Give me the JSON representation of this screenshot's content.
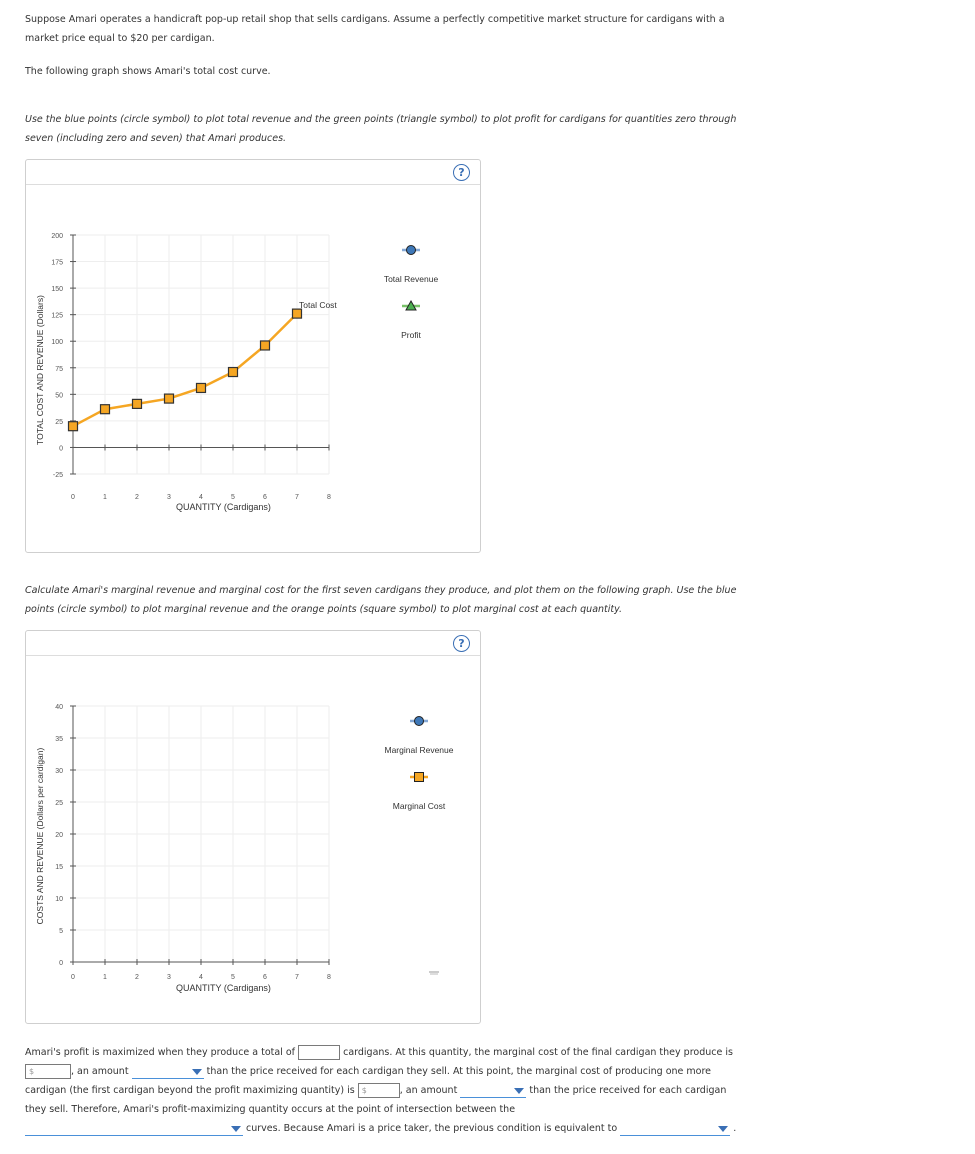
{
  "intro": {
    "line1": "Suppose Amari operates a handicraft pop-up retail shop that sells cardigans. Assume a perfectly competitive market structure for cardigans with a",
    "line2": "market price equal to $20 per cardigan.",
    "line3": "The following graph shows Amari's total cost curve."
  },
  "instruction1": {
    "line1": "Use the blue points (circle symbol) to plot total revenue and the green points (triangle symbol) to plot profit for cardigans for quantities zero through",
    "line2": "seven (including zero and seven) that Amari produces."
  },
  "instruction2": {
    "line1": "Calculate Amari's marginal revenue and marginal cost for the first seven cardigans they produce, and plot them on the following graph. Use the blue",
    "line2": "points (circle symbol) to plot marginal revenue and the orange points (square symbol) to plot marginal cost at each quantity."
  },
  "help_symbol": "?",
  "graph1": {
    "ylabel": "TOTAL COST AND REVENUE (Dollars)",
    "xlabel": "QUANTITY (Cardigans)",
    "y_ticks": [
      "200",
      "175",
      "150",
      "125",
      "100",
      "75",
      "50",
      "25",
      "0",
      "-25"
    ],
    "x_ticks": [
      "0",
      "1",
      "2",
      "3",
      "4",
      "5",
      "6",
      "7",
      "8"
    ],
    "curve_label": "Total Cost",
    "legend": [
      "Total Revenue",
      "Profit"
    ]
  },
  "graph2": {
    "ylabel": "COSTS AND REVENUE (Dollars per cardigan)",
    "xlabel": "QUANTITY (Cardigans)",
    "y_ticks": [
      "40",
      "35",
      "30",
      "25",
      "20",
      "15",
      "10",
      "5",
      "0"
    ],
    "x_ticks": [
      "0",
      "1",
      "2",
      "3",
      "4",
      "5",
      "6",
      "7",
      "8"
    ],
    "legend": [
      "Marginal Revenue",
      "Marginal Cost"
    ]
  },
  "chart_data": [
    {
      "type": "line",
      "series": [
        {
          "name": "Total Cost",
          "x": [
            0,
            1,
            2,
            3,
            4,
            5,
            6,
            7
          ],
          "values": [
            20,
            36,
            41,
            46,
            56,
            71,
            96,
            126
          ]
        }
      ],
      "xlim": [
        0,
        8
      ],
      "ylim": [
        -25,
        200
      ],
      "xlabel": "QUANTITY (Cardigans)",
      "ylabel": "TOTAL COST AND REVENUE (Dollars)",
      "colors": {
        "line": "#f5a623",
        "marker_fill": "#f5a623",
        "marker_edge": "#333333"
      }
    },
    {
      "type": "line",
      "series": [],
      "xlim": [
        0,
        8
      ],
      "ylim": [
        0,
        40
      ],
      "xlabel": "QUANTITY (Cardigans)",
      "ylabel": "COSTS AND REVENUE (Dollars per cardigan)"
    }
  ],
  "bottom": {
    "t1": "Amari's profit is maximized when they produce a total of",
    "t2": "cardigans. At this quantity, the marginal cost of the final cardigan they produce is",
    "dollar": "$",
    "t3": ", an amount",
    "t4": "than the price received for each cardigan they sell. At this point, the marginal cost of producing one more",
    "t5": "cardigan (the first cardigan beyond the profit maximizing quantity) is",
    "t6": ", an amount",
    "t7": "than the price received for each cardigan",
    "t8": "they sell. Therefore, Amari's profit-maximizing quantity occurs at the point of intersection between the",
    "t9": "curves. Because Amari is a price taker, the previous condition is equivalent to",
    "t10": "."
  }
}
